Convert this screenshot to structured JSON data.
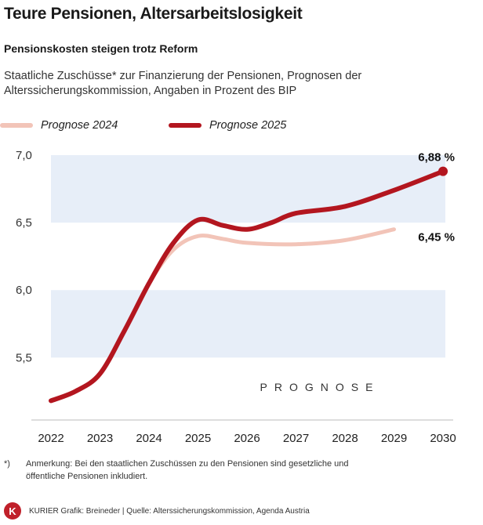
{
  "header": {
    "title": "Teure Pensionen, Altersarbeitslosigkeit",
    "subtitle": "Pensionskosten steigen trotz Reform",
    "description": "Staatliche Zuschüsse* zur Finanzierung der Pensionen, Prognosen der Alterssicherungskommission, Angaben in Prozent des BIP"
  },
  "footer": {
    "note_mark": "*)",
    "note": "Anmerkung: Bei den staatlichen Zuschüssen zu den Pensionen sind gesetzliche und öffentliche Pensionen inkludiert.",
    "logo_letter": "K",
    "credit": "KURIER Grafik: Breineder | Quelle: Alterssicherungskommission, Agenda Austria"
  },
  "colors": {
    "series_2024": "#f2c4b8",
    "series_2025": "#b3161f",
    "band": "#e7eef8",
    "axis_text": "#333333"
  },
  "chart_data": {
    "type": "line",
    "x": [
      2022,
      2023,
      2024,
      2025,
      2026,
      2027,
      2028,
      2029,
      2030
    ],
    "x_ticks": [
      "2022",
      "2023",
      "2024",
      "2025",
      "2026",
      "2027",
      "2028",
      "2029",
      "2030"
    ],
    "y_ticks": [
      "5,5",
      "6,0",
      "6,5",
      "7,0"
    ],
    "y_tick_values": [
      5.5,
      6.0,
      6.5,
      7.0
    ],
    "ylim": [
      5.2,
      7.0
    ],
    "series": [
      {
        "name": "Prognose 2024",
        "x": [
          2022,
          2022.5,
          2023,
          2023.5,
          2024,
          2024.5,
          2025,
          2025.5,
          2026,
          2027,
          2028,
          2029
        ],
        "values": [
          5.18,
          5.25,
          5.38,
          5.7,
          6.05,
          6.3,
          6.4,
          6.38,
          6.35,
          6.34,
          6.37,
          6.45
        ],
        "end_label": "6,45 %"
      },
      {
        "name": "Prognose 2025",
        "x": [
          2022,
          2022.5,
          2023,
          2023.5,
          2024,
          2024.5,
          2025,
          2025.5,
          2026,
          2026.5,
          2027,
          2028,
          2029,
          2030
        ],
        "values": [
          5.18,
          5.25,
          5.38,
          5.7,
          6.05,
          6.35,
          6.52,
          6.48,
          6.45,
          6.5,
          6.57,
          6.62,
          6.74,
          6.88
        ],
        "end_label": "6,88 %"
      }
    ],
    "bands": [
      [
        5.5,
        6.0
      ],
      [
        6.5,
        7.0
      ]
    ],
    "annotation": "PROGNOSE"
  }
}
